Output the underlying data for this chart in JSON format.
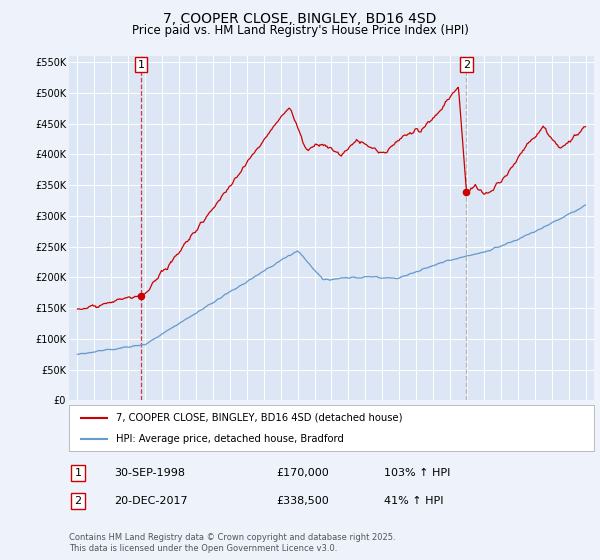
{
  "title": "7, COOPER CLOSE, BINGLEY, BD16 4SD",
  "subtitle": "Price paid vs. HM Land Registry's House Price Index (HPI)",
  "title_fontsize": 10,
  "subtitle_fontsize": 8.5,
  "bg_color": "#eef2fa",
  "plot_bg_color": "#dce6f5",
  "grid_color": "#ffffff",
  "red_color": "#cc0000",
  "blue_color": "#6699cc",
  "marker1_date": 1998.75,
  "marker1_value": 170000,
  "marker1_label": "1",
  "marker2_date": 2017.97,
  "marker2_value": 338500,
  "marker2_label": "2",
  "vline1_x": 1998.75,
  "vline2_x": 2017.97,
  "ylim_min": 0,
  "ylim_max": 560000,
  "xlim_min": 1994.5,
  "xlim_max": 2025.5,
  "ytick_values": [
    0,
    50000,
    100000,
    150000,
    200000,
    250000,
    300000,
    350000,
    400000,
    450000,
    500000,
    550000
  ],
  "ytick_labels": [
    "£0",
    "£50K",
    "£100K",
    "£150K",
    "£200K",
    "£250K",
    "£300K",
    "£350K",
    "£400K",
    "£450K",
    "£500K",
    "£550K"
  ],
  "xtick_values": [
    1995,
    1996,
    1997,
    1998,
    1999,
    2000,
    2001,
    2002,
    2003,
    2004,
    2005,
    2006,
    2007,
    2008,
    2009,
    2010,
    2011,
    2012,
    2013,
    2014,
    2015,
    2016,
    2017,
    2018,
    2019,
    2020,
    2021,
    2022,
    2023,
    2024,
    2025
  ],
  "legend_label_red": "7, COOPER CLOSE, BINGLEY, BD16 4SD (detached house)",
  "legend_label_blue": "HPI: Average price, detached house, Bradford",
  "footnote": "Contains HM Land Registry data © Crown copyright and database right 2025.\nThis data is licensed under the Open Government Licence v3.0.",
  "table_row1": [
    "1",
    "30-SEP-1998",
    "£170,000",
    "103% ↑ HPI"
  ],
  "table_row2": [
    "2",
    "20-DEC-2017",
    "£338,500",
    "41% ↑ HPI"
  ]
}
